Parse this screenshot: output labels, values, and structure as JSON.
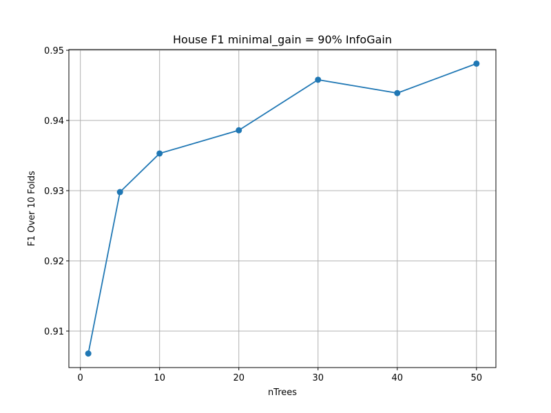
{
  "chart_data": {
    "type": "line",
    "title": "House F1 minimal_gain = 90% InfoGain",
    "xlabel": "nTrees",
    "ylabel": "F1 Over 10 Folds",
    "x": [
      1,
      5,
      10,
      20,
      30,
      40,
      50
    ],
    "series": [
      {
        "values": [
          0.9068,
          0.9298,
          0.9353,
          0.9386,
          0.9458,
          0.9439,
          0.9481
        ]
      }
    ],
    "xlim": [
      -1.45,
      52.45
    ],
    "ylim": [
      0.9048,
      0.9501
    ],
    "xticks": [
      0,
      10,
      20,
      30,
      40,
      50
    ],
    "xtick_labels": [
      "0",
      "10",
      "20",
      "30",
      "40",
      "50"
    ],
    "yticks": [
      0.91,
      0.92,
      0.93,
      0.94,
      0.95
    ],
    "ytick_labels": [
      "0.91",
      "0.92",
      "0.93",
      "0.94",
      "0.95"
    ],
    "grid": true,
    "line_color": "#1f77b4",
    "grid_color": "#b0b0b0",
    "marker": "circle"
  }
}
